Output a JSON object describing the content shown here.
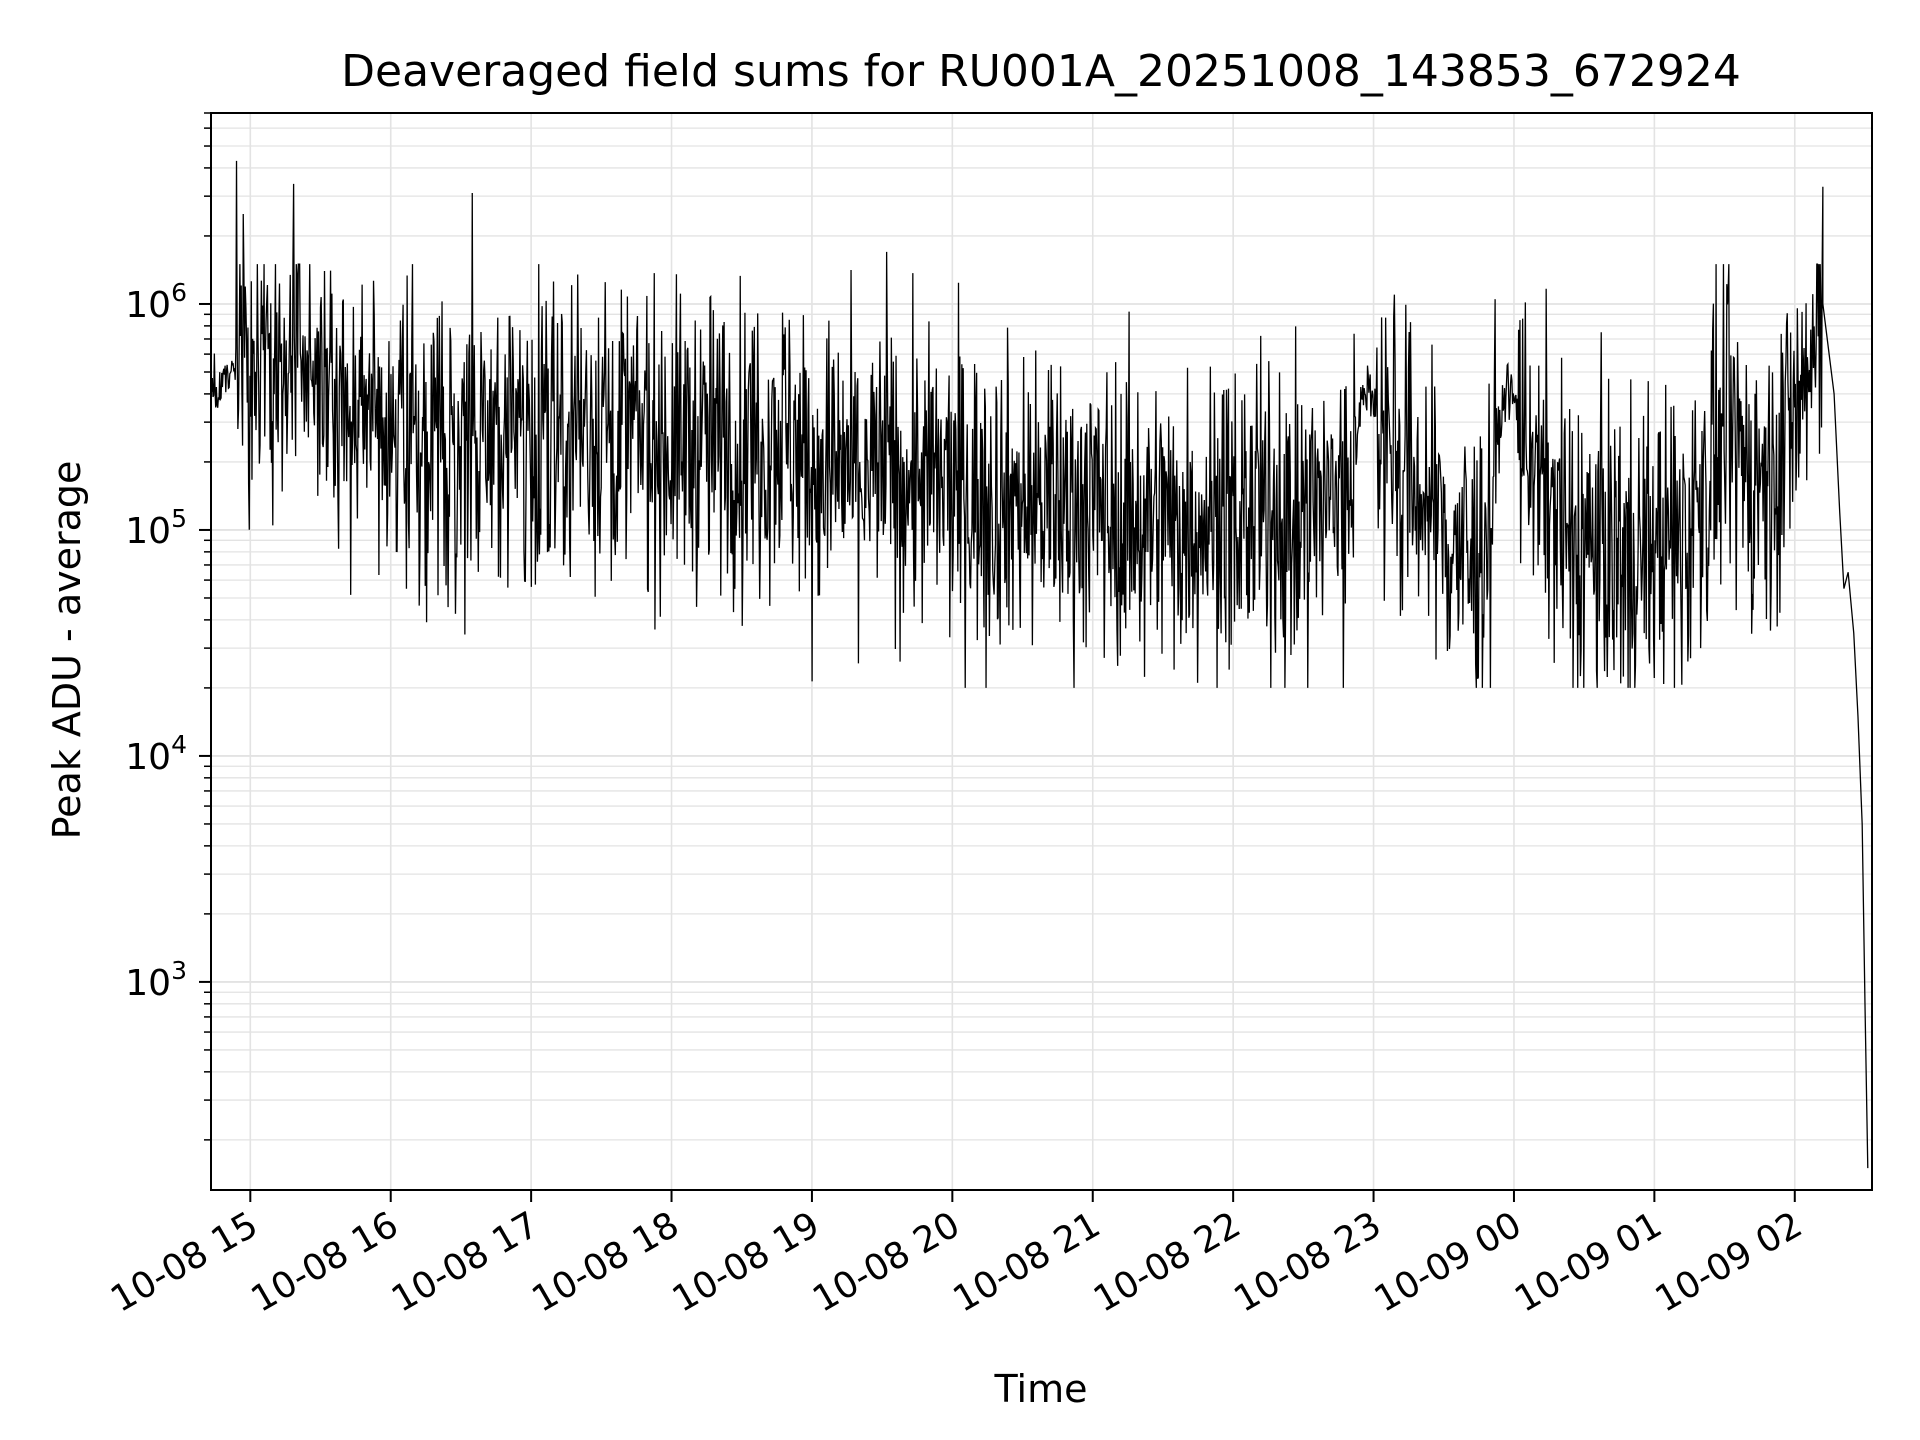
{
  "chart_data": {
    "type": "line",
    "title": "Deaveraged field sums for RU001A_20251008_143853_672924",
    "xlabel": "Time",
    "ylabel": "Peak ADU - average",
    "yscale": "log",
    "ylim": [
      120,
      7000000
    ],
    "xlim_hours": [
      -0.28,
      11.55
    ],
    "grid": true,
    "line_color": "#000000",
    "grid_color": "#e3e3e3",
    "x_ticks": [
      {
        "hour": 0,
        "label": "10-08 15"
      },
      {
        "hour": 1,
        "label": "10-08 16"
      },
      {
        "hour": 2,
        "label": "10-08 17"
      },
      {
        "hour": 3,
        "label": "10-08 18"
      },
      {
        "hour": 4,
        "label": "10-08 19"
      },
      {
        "hour": 5,
        "label": "10-08 20"
      },
      {
        "hour": 6,
        "label": "10-08 21"
      },
      {
        "hour": 7,
        "label": "10-08 22"
      },
      {
        "hour": 8,
        "label": "10-08 23"
      },
      {
        "hour": 9,
        "label": "10-09 00"
      },
      {
        "hour": 10,
        "label": "10-09 01"
      },
      {
        "hour": 11,
        "label": "10-09 02"
      }
    ],
    "y_ticks": [
      {
        "exp": 3,
        "base": "10",
        "sup": "3"
      },
      {
        "exp": 4,
        "base": "10",
        "sup": "4"
      },
      {
        "exp": 5,
        "base": "10",
        "sup": "5"
      },
      {
        "exp": 6,
        "base": "10",
        "sup": "6"
      }
    ],
    "baseline_trend": [
      {
        "hour": -0.28,
        "value": 400000
      },
      {
        "hour": 0.0,
        "value": 550000
      },
      {
        "hour": 0.3,
        "value": 500000
      },
      {
        "hour": 0.6,
        "value": 420000
      },
      {
        "hour": 1.0,
        "value": 330000
      },
      {
        "hour": 1.5,
        "value": 230000
      },
      {
        "hour": 2.0,
        "value": 290000
      },
      {
        "hour": 2.5,
        "value": 300000
      },
      {
        "hour": 3.0,
        "value": 240000
      },
      {
        "hour": 3.5,
        "value": 250000
      },
      {
        "hour": 3.8,
        "value": 280000
      },
      {
        "hour": 4.0,
        "value": 190000
      },
      {
        "hour": 4.5,
        "value": 180000
      },
      {
        "hour": 5.0,
        "value": 150000
      },
      {
        "hour": 5.5,
        "value": 140000
      },
      {
        "hour": 6.0,
        "value": 130000
      },
      {
        "hour": 6.5,
        "value": 110000
      },
      {
        "hour": 7.0,
        "value": 120000
      },
      {
        "hour": 7.5,
        "value": 110000
      },
      {
        "hour": 7.8,
        "value": 150000
      },
      {
        "hour": 7.95,
        "value": 450000
      },
      {
        "hour": 8.2,
        "value": 200000
      },
      {
        "hour": 8.6,
        "value": 80000
      },
      {
        "hour": 8.75,
        "value": 70000
      },
      {
        "hour": 8.95,
        "value": 450000
      },
      {
        "hour": 9.1,
        "value": 250000
      },
      {
        "hour": 9.4,
        "value": 90000
      },
      {
        "hour": 9.8,
        "value": 85000
      },
      {
        "hour": 10.2,
        "value": 90000
      },
      {
        "hour": 10.5,
        "value": 250000
      },
      {
        "hour": 10.8,
        "value": 150000
      },
      {
        "hour": 11.0,
        "value": 350000
      },
      {
        "hour": 11.15,
        "value": 600000
      },
      {
        "hour": 11.2,
        "value": 900000
      }
    ],
    "spikes": [
      {
        "hour": -0.1,
        "value": 4300000
      },
      {
        "hour": -0.05,
        "value": 2500000
      },
      {
        "hour": 0.31,
        "value": 3400000
      },
      {
        "hour": 0.53,
        "value": 1400000
      },
      {
        "hour": 1.58,
        "value": 3100000
      },
      {
        "hour": 2.33,
        "value": 1350000
      },
      {
        "hour": 2.53,
        "value": 1250000
      },
      {
        "hour": 4.53,
        "value": 1700000
      },
      {
        "hour": 8.15,
        "value": 1100000
      },
      {
        "hour": 11.2,
        "value": 3300000
      }
    ],
    "tail": [
      {
        "hour": 11.2,
        "value": 1000000
      },
      {
        "hour": 11.28,
        "value": 400000
      },
      {
        "hour": 11.32,
        "value": 120000
      },
      {
        "hour": 11.35,
        "value": 55000
      },
      {
        "hour": 11.38,
        "value": 65000
      },
      {
        "hour": 11.42,
        "value": 35000
      },
      {
        "hour": 11.45,
        "value": 15000
      },
      {
        "hour": 11.48,
        "value": 5000
      },
      {
        "hour": 11.5,
        "value": 800
      },
      {
        "hour": 11.52,
        "value": 150
      }
    ]
  }
}
